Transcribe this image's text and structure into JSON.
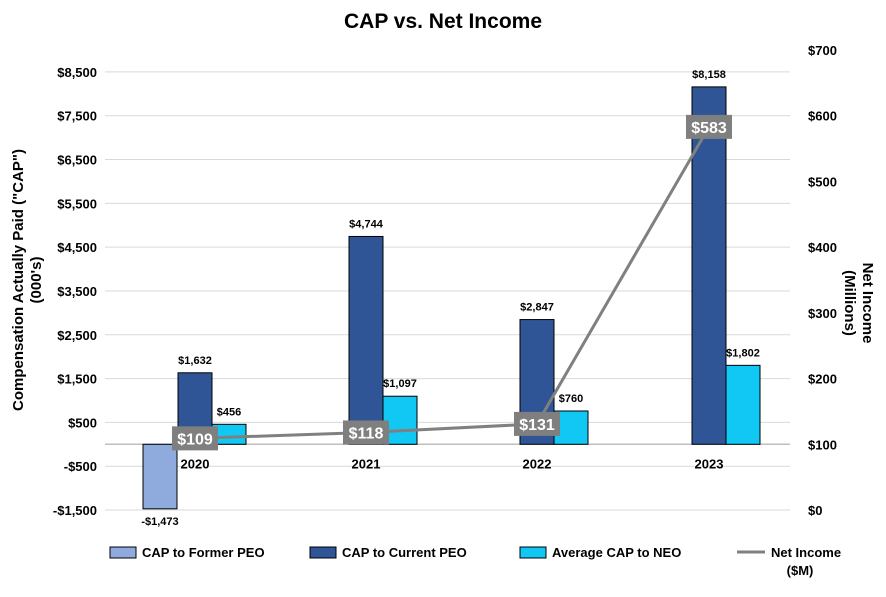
{
  "chart_data": {
    "type": "bar+line",
    "title": "CAP vs. Net Income",
    "categories": [
      "2020",
      "2021",
      "2022",
      "2023"
    ],
    "y_left": {
      "label": "Compensation Actually Paid (\"CAP\")",
      "label2": "(000's)",
      "ylim": [
        -1500,
        9000
      ],
      "ticks": [
        -1500,
        -500,
        500,
        1500,
        2500,
        3500,
        4500,
        5500,
        6500,
        7500,
        8500
      ],
      "tick_labels": [
        "-$1,500",
        "-$500",
        "$500",
        "$1,500",
        "$2,500",
        "$3,500",
        "$4,500",
        "$5,500",
        "$6,500",
        "$7,500",
        "$8,500"
      ]
    },
    "y_right": {
      "label": "Net Income",
      "label2": "(Millions)",
      "ylim": [
        0,
        700
      ],
      "ticks": [
        0,
        100,
        200,
        300,
        400,
        500,
        600,
        700
      ],
      "tick_labels": [
        "$0",
        "$100",
        "$200",
        "$300",
        "$400",
        "$500",
        "$600",
        "$700"
      ]
    },
    "grid": true,
    "legend_position": "bottom",
    "series": [
      {
        "name": "CAP to Former PEO",
        "type": "bar",
        "axis": "left",
        "color": "#8faadc",
        "values": [
          -1473,
          null,
          null,
          null
        ],
        "labels": [
          "-$1,473",
          "",
          "",
          ""
        ]
      },
      {
        "name": "CAP to Current PEO",
        "type": "bar",
        "axis": "left",
        "color": "#2f5597",
        "values": [
          1632,
          4744,
          2847,
          8158
        ],
        "labels": [
          "$1,632",
          "$4,744",
          "$2,847",
          "$8,158"
        ]
      },
      {
        "name": "Average CAP to NEO",
        "type": "bar",
        "axis": "left",
        "color": "#11c8f5",
        "values": [
          456,
          1097,
          760,
          1802
        ],
        "labels": [
          "$456",
          "$1,097",
          "$760",
          "$1,802"
        ]
      },
      {
        "name": "Net Income",
        "name2": "($M)",
        "type": "line",
        "axis": "right",
        "color": "#808080",
        "values": [
          109,
          118,
          131,
          583
        ],
        "labels": [
          "$109",
          "$118",
          "$131",
          "$583"
        ]
      }
    ]
  }
}
